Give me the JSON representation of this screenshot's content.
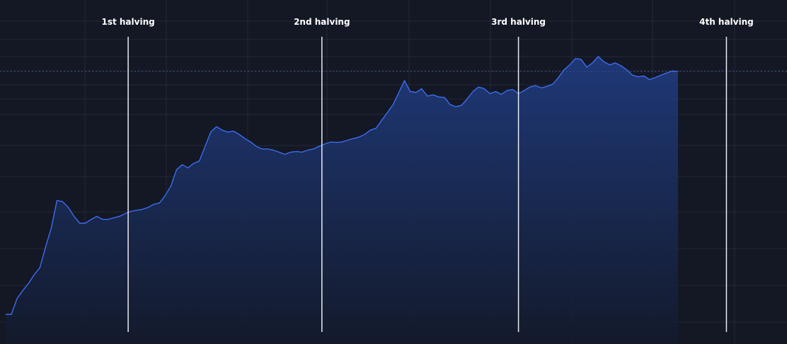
{
  "chart_data": {
    "type": "area",
    "title": "",
    "xlabel": "",
    "ylabel": "",
    "y_scale": "log",
    "grid": true,
    "colors": {
      "background": "#141824",
      "line": "#3d6cf0",
      "fill_top": "#1f3a7c",
      "fill_bottom": "#131a2c",
      "halving_line": "#e9ecf2",
      "label": "#ffffff"
    },
    "series": [
      {
        "values": [
          0.02,
          0.02,
          0.05,
          0.08,
          0.12,
          0.2,
          0.3,
          1,
          3,
          15,
          14,
          10,
          6,
          4,
          4,
          5,
          6,
          5,
          5,
          5.5,
          6,
          7,
          8,
          8.5,
          9,
          10,
          12,
          13,
          20,
          35,
          90,
          120,
          100,
          130,
          150,
          350,
          800,
          1100,
          900,
          800,
          850,
          700,
          550,
          450,
          350,
          300,
          300,
          280,
          250,
          220,
          250,
          260,
          250,
          280,
          300,
          350,
          400,
          450,
          440,
          450,
          500,
          550,
          600,
          700,
          900,
          1000,
          1600,
          2500,
          4000,
          8000,
          16000,
          8500,
          8000,
          10000,
          6500,
          7000,
          6200,
          6000,
          4000,
          3500,
          3800,
          5500,
          8500,
          11000,
          10000,
          7500,
          8500,
          7200,
          9000,
          9500,
          7500,
          9000,
          11000,
          12000,
          10500,
          11500,
          13000,
          19000,
          30000,
          40000,
          58000,
          55000,
          35000,
          45000,
          65000,
          48000,
          40000,
          45000,
          38000,
          30000,
          22000,
          20000,
          21000,
          17000,
          19000,
          22000,
          25000,
          28000,
          27000
        ]
      }
    ],
    "annotations": [
      {
        "label": "1st halving",
        "at_index": 21.5
      },
      {
        "label": "2nd halving",
        "at_index": 55.5
      },
      {
        "label": "3rd halving",
        "at_index": 90
      },
      {
        "label": "4th halving",
        "at_index": 126.5
      }
    ]
  }
}
